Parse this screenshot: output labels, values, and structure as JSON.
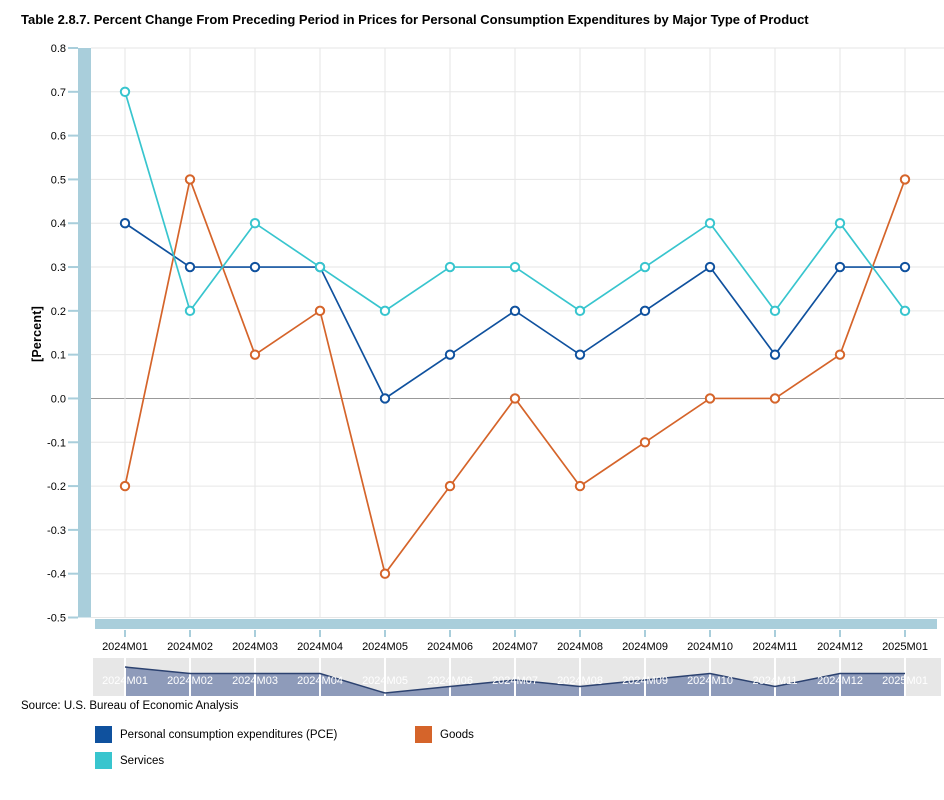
{
  "title": "Table 2.8.7. Percent Change From Preceding Period in Prices for Personal Consumption Expenditures by Major Type of Product",
  "source": "Source: U.S. Bureau of Economic Analysis",
  "colors": {
    "axis_bar": "#A9CEDB",
    "grid": "#E6E6E6",
    "zero_line": "#999999",
    "text": "#000000",
    "navigator_bg": "#E7E7E7",
    "navigator_fill": "#8E9BBA",
    "navigator_line": "#2C4270",
    "navigator_label": "#FFFFFF"
  },
  "legend": {
    "items": [
      {
        "label": "Personal consumption expenditures (PCE)",
        "color": "#0F519E"
      },
      {
        "label": "Goods",
        "color": "#D5642A"
      },
      {
        "label": "Services",
        "color": "#38C5CE"
      }
    ]
  },
  "chart_data": {
    "type": "line",
    "title": "Table 2.8.7. Percent Change From Preceding Period in Prices for Personal Consumption Expenditures by Major Type of Product",
    "categories": [
      "2024M01",
      "2024M02",
      "2024M03",
      "2024M04",
      "2024M05",
      "2024M06",
      "2024M07",
      "2024M08",
      "2024M09",
      "2024M10",
      "2024M11",
      "2024M12",
      "2025M01"
    ],
    "series": [
      {
        "name": "Personal consumption expenditures (PCE)",
        "color": "#0F519E",
        "values": [
          0.4,
          0.3,
          0.3,
          0.3,
          0.0,
          0.1,
          0.2,
          0.1,
          0.2,
          0.3,
          0.1,
          0.3,
          0.3
        ]
      },
      {
        "name": "Goods",
        "color": "#D5642A",
        "values": [
          -0.2,
          0.5,
          0.1,
          0.2,
          -0.4,
          -0.2,
          0.0,
          -0.2,
          -0.1,
          0.0,
          0.0,
          0.1,
          0.5
        ]
      },
      {
        "name": "Services",
        "color": "#38C5CE",
        "values": [
          0.7,
          0.2,
          0.4,
          0.3,
          0.2,
          0.3,
          0.3,
          0.2,
          0.3,
          0.4,
          0.2,
          0.4,
          0.2
        ]
      }
    ],
    "xlabel": "",
    "ylabel": "[Percent]",
    "ylim": [
      -0.5,
      0.8
    ],
    "ytick_labels": [
      "0.8",
      "0.7",
      "0.6",
      "0.5",
      "0.4",
      "0.3",
      "0.2",
      "0.1",
      "0.0",
      "-0.1",
      "-0.2",
      "-0.3",
      "-0.4",
      "-0.5"
    ],
    "grid": true,
    "legend_position": "bottom",
    "marker_style": "open-circle",
    "navigator": {
      "visible": true,
      "series_name": "Personal consumption expenditures (PCE)"
    }
  }
}
